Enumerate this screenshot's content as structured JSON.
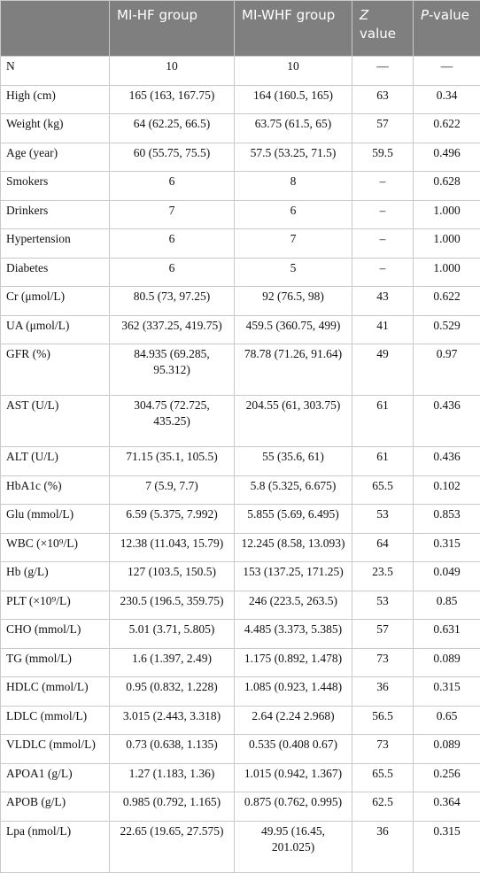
{
  "table": {
    "header": [
      "MI-HF group",
      "MI-WHF group",
      {
        "italic": "Z",
        "rest": " value"
      },
      {
        "italic": "P",
        "rest": "-value"
      }
    ],
    "rows": [
      [
        "N",
        "10",
        "10",
        "—",
        "—"
      ],
      [
        "High (cm)",
        "165 (163, 167.75)",
        "164 (160.5, 165)",
        "63",
        "0.34"
      ],
      [
        "Weight (kg)",
        "64 (62.25, 66.5)",
        "63.75 (61.5, 65)",
        "57",
        "0.622"
      ],
      [
        "Age (year)",
        "60 (55.75, 75.5)",
        "57.5 (53.25, 71.5)",
        "59.5",
        "0.496"
      ],
      [
        "Smokers",
        "6",
        "8",
        "–",
        "0.628"
      ],
      [
        "Drinkers",
        "7",
        "6",
        "–",
        "1.000"
      ],
      [
        "Hypertension",
        "6",
        "7",
        "–",
        "1.000"
      ],
      [
        "Diabetes",
        "6",
        "5",
        "–",
        "1.000"
      ],
      [
        "Cr (μmol/L)",
        "80.5 (73, 97.25)",
        "92 (76.5, 98)",
        "43",
        "0.622"
      ],
      [
        "UA (μmol/L)",
        "362 (337.25, 419.75)",
        "459.5 (360.75, 499)",
        "41",
        "0.529"
      ],
      [
        "GFR (%)",
        "84.935 (69.285, 95.312)",
        "78.78 (71.26, 91.64)",
        "49",
        "0.97"
      ],
      [
        "AST (U/L)",
        "304.75 (72.725, 435.25)",
        "204.55 (61, 303.75)",
        "61",
        "0.436"
      ],
      [
        "ALT (U/L)",
        "71.15 (35.1, 105.5)",
        "55 (35.6, 61)",
        "61",
        "0.436"
      ],
      [
        "HbA1c (%)",
        "7 (5.9, 7.7)",
        "5.8 (5.325, 6.675)",
        "65.5",
        "0.102"
      ],
      [
        "Glu (mmol/L)",
        "6.59 (5.375, 7.992)",
        "5.855 (5.69, 6.495)",
        "53",
        "0.853"
      ],
      [
        "WBC (×10⁹/L)",
        "12.38 (11.043, 15.79)",
        "12.245 (8.58, 13.093)",
        "64",
        "0.315"
      ],
      [
        "Hb (g/L)",
        "127 (103.5, 150.5)",
        "153 (137.25, 171.25)",
        "23.5",
        "0.049"
      ],
      [
        "PLT (×10⁹/L)",
        "230.5 (196.5, 359.75)",
        "246 (223.5, 263.5)",
        "53",
        "0.85"
      ],
      [
        "CHO (mmol/L)",
        "5.01 (3.71, 5.805)",
        "4.485 (3.373, 5.385)",
        "57",
        "0.631"
      ],
      [
        "TG (mmol/L)",
        "1.6 (1.397, 2.49)",
        "1.175 (0.892, 1.478)",
        "73",
        "0.089"
      ],
      [
        "HDLC (mmol/L)",
        "0.95 (0.832, 1.228)",
        "1.085 (0.923, 1.448)",
        "36",
        "0.315"
      ],
      [
        "LDLC (mmol/L)",
        "3.015 (2.443, 3.318)",
        "2.64 (2.24 2.968)",
        "56.5",
        "0.65"
      ],
      [
        "VLDLC (mmol/L)",
        "0.73 (0.638, 1.135)",
        "0.535 (0.408 0.67)",
        "73",
        "0.089"
      ],
      [
        "APOA1 (g/L)",
        "1.27 (1.183, 1.36)",
        "1.015 (0.942, 1.367)",
        "65.5",
        "0.256"
      ],
      [
        "APOB (g/L)",
        "0.985 (0.792, 1.165)",
        "0.875 (0.762, 0.995)",
        "62.5",
        "0.364"
      ],
      [
        "Lpa (nmol/L)",
        "22.65 (19.65, 27.575)",
        "49.95 (16.45, 201.025)",
        "36",
        "0.315"
      ]
    ]
  }
}
